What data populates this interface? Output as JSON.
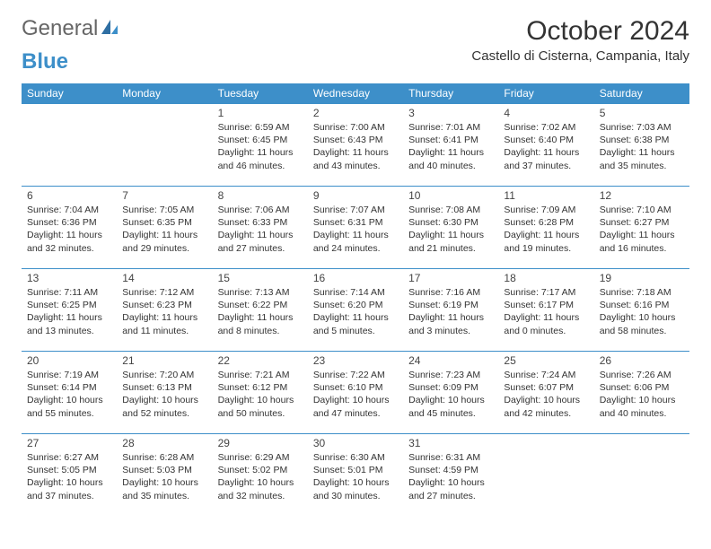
{
  "brand": {
    "part1": "General",
    "part2": "Blue"
  },
  "colors": {
    "accent": "#3d8fc9",
    "header_bg": "#3d8fc9",
    "header_text": "#ffffff",
    "text": "#333333",
    "border": "#3d8fc9",
    "background": "#ffffff"
  },
  "title": "October 2024",
  "location": "Castello di Cisterna, Campania, Italy",
  "weekdays": [
    "Sunday",
    "Monday",
    "Tuesday",
    "Wednesday",
    "Thursday",
    "Friday",
    "Saturday"
  ],
  "typography": {
    "title_fontsize": 30,
    "location_fontsize": 15,
    "dow_fontsize": 12,
    "daynum_fontsize": 12,
    "info_fontsize": 10.5
  },
  "weeks": [
    [
      null,
      null,
      {
        "day": "1",
        "sunrise": "Sunrise: 6:59 AM",
        "sunset": "Sunset: 6:45 PM",
        "daylight": "Daylight: 11 hours and 46 minutes."
      },
      {
        "day": "2",
        "sunrise": "Sunrise: 7:00 AM",
        "sunset": "Sunset: 6:43 PM",
        "daylight": "Daylight: 11 hours and 43 minutes."
      },
      {
        "day": "3",
        "sunrise": "Sunrise: 7:01 AM",
        "sunset": "Sunset: 6:41 PM",
        "daylight": "Daylight: 11 hours and 40 minutes."
      },
      {
        "day": "4",
        "sunrise": "Sunrise: 7:02 AM",
        "sunset": "Sunset: 6:40 PM",
        "daylight": "Daylight: 11 hours and 37 minutes."
      },
      {
        "day": "5",
        "sunrise": "Sunrise: 7:03 AM",
        "sunset": "Sunset: 6:38 PM",
        "daylight": "Daylight: 11 hours and 35 minutes."
      }
    ],
    [
      {
        "day": "6",
        "sunrise": "Sunrise: 7:04 AM",
        "sunset": "Sunset: 6:36 PM",
        "daylight": "Daylight: 11 hours and 32 minutes."
      },
      {
        "day": "7",
        "sunrise": "Sunrise: 7:05 AM",
        "sunset": "Sunset: 6:35 PM",
        "daylight": "Daylight: 11 hours and 29 minutes."
      },
      {
        "day": "8",
        "sunrise": "Sunrise: 7:06 AM",
        "sunset": "Sunset: 6:33 PM",
        "daylight": "Daylight: 11 hours and 27 minutes."
      },
      {
        "day": "9",
        "sunrise": "Sunrise: 7:07 AM",
        "sunset": "Sunset: 6:31 PM",
        "daylight": "Daylight: 11 hours and 24 minutes."
      },
      {
        "day": "10",
        "sunrise": "Sunrise: 7:08 AM",
        "sunset": "Sunset: 6:30 PM",
        "daylight": "Daylight: 11 hours and 21 minutes."
      },
      {
        "day": "11",
        "sunrise": "Sunrise: 7:09 AM",
        "sunset": "Sunset: 6:28 PM",
        "daylight": "Daylight: 11 hours and 19 minutes."
      },
      {
        "day": "12",
        "sunrise": "Sunrise: 7:10 AM",
        "sunset": "Sunset: 6:27 PM",
        "daylight": "Daylight: 11 hours and 16 minutes."
      }
    ],
    [
      {
        "day": "13",
        "sunrise": "Sunrise: 7:11 AM",
        "sunset": "Sunset: 6:25 PM",
        "daylight": "Daylight: 11 hours and 13 minutes."
      },
      {
        "day": "14",
        "sunrise": "Sunrise: 7:12 AM",
        "sunset": "Sunset: 6:23 PM",
        "daylight": "Daylight: 11 hours and 11 minutes."
      },
      {
        "day": "15",
        "sunrise": "Sunrise: 7:13 AM",
        "sunset": "Sunset: 6:22 PM",
        "daylight": "Daylight: 11 hours and 8 minutes."
      },
      {
        "day": "16",
        "sunrise": "Sunrise: 7:14 AM",
        "sunset": "Sunset: 6:20 PM",
        "daylight": "Daylight: 11 hours and 5 minutes."
      },
      {
        "day": "17",
        "sunrise": "Sunrise: 7:16 AM",
        "sunset": "Sunset: 6:19 PM",
        "daylight": "Daylight: 11 hours and 3 minutes."
      },
      {
        "day": "18",
        "sunrise": "Sunrise: 7:17 AM",
        "sunset": "Sunset: 6:17 PM",
        "daylight": "Daylight: 11 hours and 0 minutes."
      },
      {
        "day": "19",
        "sunrise": "Sunrise: 7:18 AM",
        "sunset": "Sunset: 6:16 PM",
        "daylight": "Daylight: 10 hours and 58 minutes."
      }
    ],
    [
      {
        "day": "20",
        "sunrise": "Sunrise: 7:19 AM",
        "sunset": "Sunset: 6:14 PM",
        "daylight": "Daylight: 10 hours and 55 minutes."
      },
      {
        "day": "21",
        "sunrise": "Sunrise: 7:20 AM",
        "sunset": "Sunset: 6:13 PM",
        "daylight": "Daylight: 10 hours and 52 minutes."
      },
      {
        "day": "22",
        "sunrise": "Sunrise: 7:21 AM",
        "sunset": "Sunset: 6:12 PM",
        "daylight": "Daylight: 10 hours and 50 minutes."
      },
      {
        "day": "23",
        "sunrise": "Sunrise: 7:22 AM",
        "sunset": "Sunset: 6:10 PM",
        "daylight": "Daylight: 10 hours and 47 minutes."
      },
      {
        "day": "24",
        "sunrise": "Sunrise: 7:23 AM",
        "sunset": "Sunset: 6:09 PM",
        "daylight": "Daylight: 10 hours and 45 minutes."
      },
      {
        "day": "25",
        "sunrise": "Sunrise: 7:24 AM",
        "sunset": "Sunset: 6:07 PM",
        "daylight": "Daylight: 10 hours and 42 minutes."
      },
      {
        "day": "26",
        "sunrise": "Sunrise: 7:26 AM",
        "sunset": "Sunset: 6:06 PM",
        "daylight": "Daylight: 10 hours and 40 minutes."
      }
    ],
    [
      {
        "day": "27",
        "sunrise": "Sunrise: 6:27 AM",
        "sunset": "Sunset: 5:05 PM",
        "daylight": "Daylight: 10 hours and 37 minutes."
      },
      {
        "day": "28",
        "sunrise": "Sunrise: 6:28 AM",
        "sunset": "Sunset: 5:03 PM",
        "daylight": "Daylight: 10 hours and 35 minutes."
      },
      {
        "day": "29",
        "sunrise": "Sunrise: 6:29 AM",
        "sunset": "Sunset: 5:02 PM",
        "daylight": "Daylight: 10 hours and 32 minutes."
      },
      {
        "day": "30",
        "sunrise": "Sunrise: 6:30 AM",
        "sunset": "Sunset: 5:01 PM",
        "daylight": "Daylight: 10 hours and 30 minutes."
      },
      {
        "day": "31",
        "sunrise": "Sunrise: 6:31 AM",
        "sunset": "Sunset: 4:59 PM",
        "daylight": "Daylight: 10 hours and 27 minutes."
      },
      null,
      null
    ]
  ]
}
